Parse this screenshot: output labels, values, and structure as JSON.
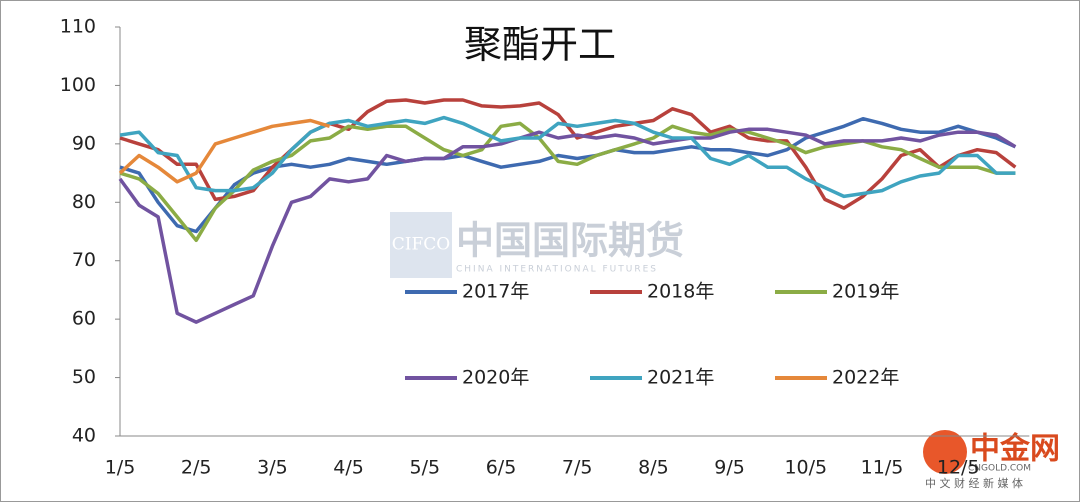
{
  "chart_data": {
    "type": "line",
    "title": "聚酯开工",
    "categories": [
      "1/5",
      null,
      null,
      null,
      "2/5",
      null,
      null,
      null,
      "3/5",
      null,
      null,
      null,
      "4/5",
      null,
      null,
      null,
      "5/5",
      null,
      null,
      null,
      "6/5",
      null,
      null,
      null,
      "7/5",
      null,
      null,
      null,
      "8/5",
      null,
      null,
      null,
      "9/5",
      null,
      null,
      null,
      "10/5",
      null,
      null,
      null,
      "11/5",
      null,
      null,
      null,
      "12/5",
      null,
      null,
      null
    ],
    "ylim": [
      40,
      110
    ],
    "yticks": [
      40,
      50,
      60,
      70,
      80,
      90,
      100,
      110
    ],
    "series": [
      {
        "name": "2017年",
        "color": "#3e6ab0",
        "values": [
          86,
          85,
          80,
          76,
          75,
          79,
          83,
          85,
          86,
          86.5,
          86,
          86.5,
          87.5,
          87,
          86.5,
          87,
          87.5,
          87.5,
          88,
          87,
          86,
          86.5,
          87,
          88,
          87.5,
          88,
          89,
          88.5,
          88.5,
          89,
          89.5,
          89,
          89,
          88.5,
          88,
          89,
          91,
          92,
          93,
          94.3,
          93.5,
          92.5,
          92,
          92,
          93,
          92,
          91,
          89.5
        ]
      },
      {
        "name": "2018年",
        "color": "#b8413c",
        "values": [
          91,
          90,
          89,
          86.5,
          86.5,
          80.5,
          81,
          82,
          86,
          89,
          92,
          93.5,
          92.5,
          95.5,
          97.3,
          97.5,
          97,
          97.5,
          97.5,
          96.5,
          96.3,
          96.5,
          97,
          95,
          91,
          92,
          93,
          93.5,
          94,
          96,
          95,
          92,
          93,
          91,
          90.5,
          90.5,
          86,
          80.5,
          79,
          81,
          84,
          88,
          89,
          86,
          88,
          89,
          88.5,
          86
        ]
      },
      {
        "name": "2019年",
        "color": "#8bac45",
        "values": [
          85,
          84,
          81.5,
          77.5,
          73.5,
          79,
          82,
          85.5,
          87,
          88,
          90.5,
          91,
          93,
          92.5,
          93,
          93,
          91,
          89,
          88,
          89,
          93,
          93.5,
          91,
          87,
          86.5,
          88,
          89,
          90,
          91,
          93,
          92,
          91.5,
          92.5,
          92,
          91,
          90,
          88.5,
          89.5,
          90,
          90.5,
          89.5,
          89,
          87.5,
          86,
          86,
          86,
          85,
          85
        ]
      },
      {
        "name": "2020年",
        "color": "#7153a0",
        "values": [
          84,
          79.5,
          77.5,
          61,
          59.5,
          61,
          62.5,
          64,
          72.5,
          80,
          81,
          84,
          83.5,
          84,
          88,
          87,
          87.5,
          87.5,
          89.5,
          89.5,
          90,
          91,
          92,
          91,
          91.5,
          91,
          91.5,
          91,
          90,
          90.5,
          91,
          91,
          92,
          92.5,
          92.5,
          92,
          91.5,
          90,
          90.5,
          90.5,
          90.5,
          91,
          90.5,
          91.5,
          92,
          92,
          91.5,
          89.5
        ]
      },
      {
        "name": "2021年",
        "color": "#3fa4c0",
        "values": [
          91.5,
          92,
          88.5,
          88,
          82.5,
          82,
          82,
          82.5,
          85,
          89,
          92,
          93.5,
          94,
          93,
          93.5,
          94,
          93.5,
          94.5,
          93.5,
          92,
          90.5,
          91,
          91,
          93.5,
          93,
          93.5,
          94,
          93.5,
          92,
          91,
          91,
          87.5,
          86.5,
          88,
          86,
          86,
          84,
          82.5,
          81,
          81.5,
          82,
          83.5,
          84.5,
          85,
          88,
          88,
          85,
          85
        ]
      },
      {
        "name": "2022年",
        "color": "#e5883a",
        "values": [
          85,
          88,
          86,
          83.5,
          85,
          90,
          91,
          92,
          93,
          93.5,
          94,
          93,
          null,
          null,
          null,
          null,
          null,
          null,
          null,
          null,
          null,
          null,
          null,
          null,
          null,
          null,
          null,
          null,
          null,
          null,
          null,
          null,
          null,
          null,
          null,
          null,
          null,
          null,
          null,
          null,
          null,
          null,
          null,
          null,
          null,
          null,
          null,
          null
        ]
      }
    ]
  },
  "watermarks": [
    "CIFCO",
    "中国国际期货",
    "CHINA INTERNATIONAL FUTURES",
    "中金网",
    "CNGOLD.COM",
    "中 文 财 经 新 媒 体"
  ]
}
